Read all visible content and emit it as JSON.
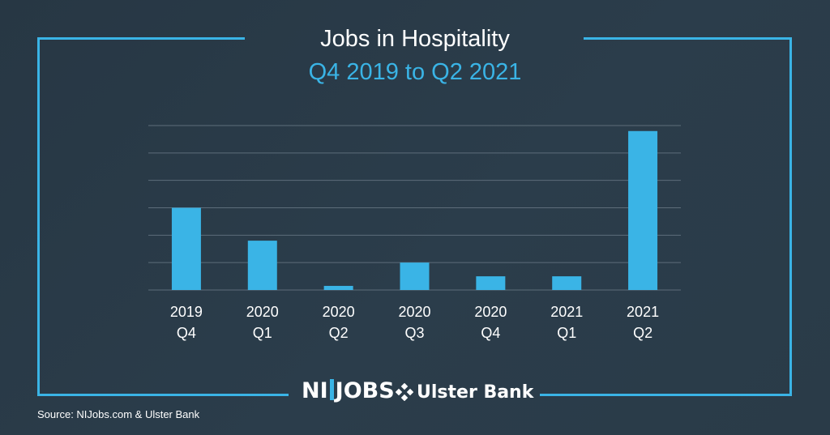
{
  "title": "Jobs in Hospitality",
  "subtitle": "Q4 2019 to Q2 2021",
  "source": "Source: NIJobs.com & Ulster Bank",
  "logos": {
    "nijobs_left": "NI",
    "nijobs_right": "JOBS",
    "ulster_bank": "Ulster Bank"
  },
  "colors": {
    "accent": "#3ab4e6",
    "background": "#2a3a48",
    "gridline": "#5d6d7a",
    "text": "#ffffff"
  },
  "chart_data": {
    "type": "bar",
    "categories": [
      [
        "2019",
        "Q4"
      ],
      [
        "2020",
        "Q1"
      ],
      [
        "2020",
        "Q2"
      ],
      [
        "2020",
        "Q3"
      ],
      [
        "2020",
        "Q4"
      ],
      [
        "2021",
        "Q1"
      ],
      [
        "2021",
        "Q2"
      ]
    ],
    "values": [
      3.0,
      1.8,
      0.15,
      1.0,
      0.5,
      0.5,
      5.8
    ],
    "ylim": [
      0,
      6
    ],
    "y_tick_labels_shown": false,
    "grid": true,
    "xlabel": "",
    "ylabel": ""
  }
}
